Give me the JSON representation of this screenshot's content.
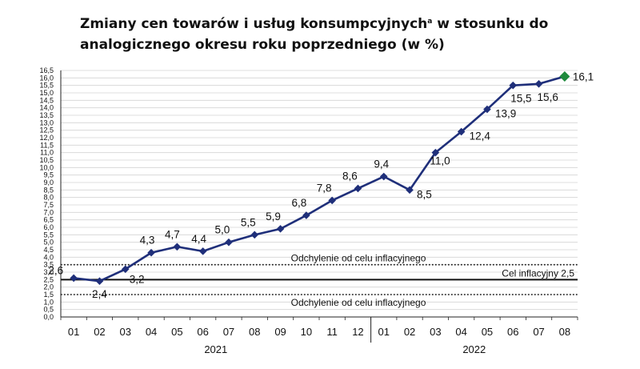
{
  "title": {
    "text_before": "Zmiany cen towarów i usług konsumpcyjnych",
    "superscript": "a",
    "text_after": " w stosunku do analogicznego okresu roku poprzedniego (w %)"
  },
  "chart_data": {
    "type": "line",
    "x_groups": [
      {
        "label": "2021",
        "categories": [
          "01",
          "02",
          "03",
          "04",
          "05",
          "06",
          "07",
          "08",
          "09",
          "10",
          "11",
          "12"
        ]
      },
      {
        "label": "2022",
        "categories": [
          "01",
          "02",
          "03",
          "04",
          "05",
          "06",
          "07",
          "08"
        ]
      }
    ],
    "categories": [
      "01",
      "02",
      "03",
      "04",
      "05",
      "06",
      "07",
      "08",
      "09",
      "10",
      "11",
      "12",
      "01",
      "02",
      "03",
      "04",
      "05",
      "06",
      "07",
      "08"
    ],
    "series": [
      {
        "values": [
          2.6,
          2.4,
          3.2,
          4.3,
          4.7,
          4.4,
          5.0,
          5.5,
          5.9,
          6.8,
          7.8,
          8.6,
          9.4,
          8.5,
          11.0,
          12.4,
          13.9,
          15.5,
          15.6,
          16.1
        ],
        "labels": [
          "2,6",
          "2,4",
          "3,2",
          "4,3",
          "4,7",
          "4,4",
          "5,0",
          "5,5",
          "5,9",
          "6,8",
          "7,8",
          "8,6",
          "9,4",
          "8,5",
          "11,0",
          "12,4",
          "13,9",
          "15,5",
          "15,6",
          "16,1"
        ],
        "color": "#1f2f7a",
        "last_point_color": "#1e8a3c"
      }
    ],
    "ylim": [
      0,
      16.5
    ],
    "y_step": 0.5,
    "y_tick_labels": [
      "0,0",
      "0,5",
      "1,0",
      "1,5",
      "2,0",
      "2,5",
      "3,0",
      "3,5",
      "4,0",
      "4,5",
      "5,0",
      "5,5",
      "6,0",
      "6,5",
      "7,0",
      "7,5",
      "8,0",
      "8,5",
      "9,0",
      "9,5",
      "10,0",
      "10,5",
      "11,0",
      "11,5",
      "12,0",
      "12,5",
      "13,0",
      "13,5",
      "14,0",
      "14,5",
      "15,0",
      "15,5",
      "16,0",
      "16,5"
    ],
    "grid": true,
    "reference_lines": [
      {
        "value": 2.5,
        "style": "solid",
        "label": "Cel inflacyjny 2,5"
      },
      {
        "value": 3.5,
        "style": "dotted",
        "label": "Odchylenie od celu inflacyjnego"
      },
      {
        "value": 1.5,
        "style": "dotted",
        "label": "Odchylenie od celu inflacyjnego"
      }
    ]
  }
}
